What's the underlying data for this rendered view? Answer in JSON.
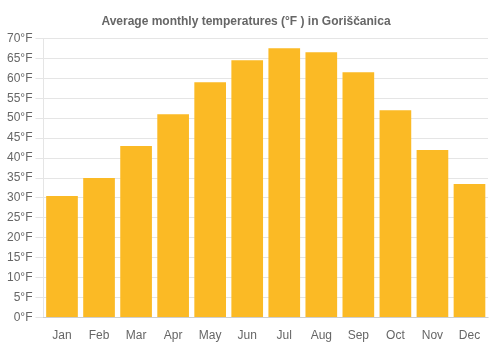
{
  "chart_data": {
    "type": "bar",
    "title": "Average monthly temperatures (°F ) in Goriščanica",
    "categories": [
      "Jan",
      "Feb",
      "Mar",
      "Apr",
      "May",
      "Jun",
      "Jul",
      "Aug",
      "Sep",
      "Oct",
      "Nov",
      "Dec"
    ],
    "values": [
      30.5,
      35.0,
      43.0,
      51.0,
      59.0,
      64.5,
      67.5,
      66.5,
      61.5,
      52.0,
      42.0,
      33.5
    ],
    "color": "#FBBA25",
    "ylim": [
      0,
      70
    ],
    "yticks": [
      {
        "value": 0,
        "label": "0°F"
      },
      {
        "value": 5,
        "label": "5°F"
      },
      {
        "value": 10,
        "label": "10°F"
      },
      {
        "value": 15,
        "label": "15°F"
      },
      {
        "value": 20,
        "label": "20°F"
      },
      {
        "value": 25,
        "label": "25°F"
      },
      {
        "value": 30,
        "label": "30°F"
      },
      {
        "value": 35,
        "label": "35°F"
      },
      {
        "value": 40,
        "label": "40°F"
      },
      {
        "value": 45,
        "label": "45°F"
      },
      {
        "value": 50,
        "label": "50°F"
      },
      {
        "value": 55,
        "label": "55°F"
      },
      {
        "value": 60,
        "label": "60°F"
      },
      {
        "value": 65,
        "label": "65°F"
      },
      {
        "value": 70,
        "label": "70°F"
      }
    ],
    "grid": true
  }
}
